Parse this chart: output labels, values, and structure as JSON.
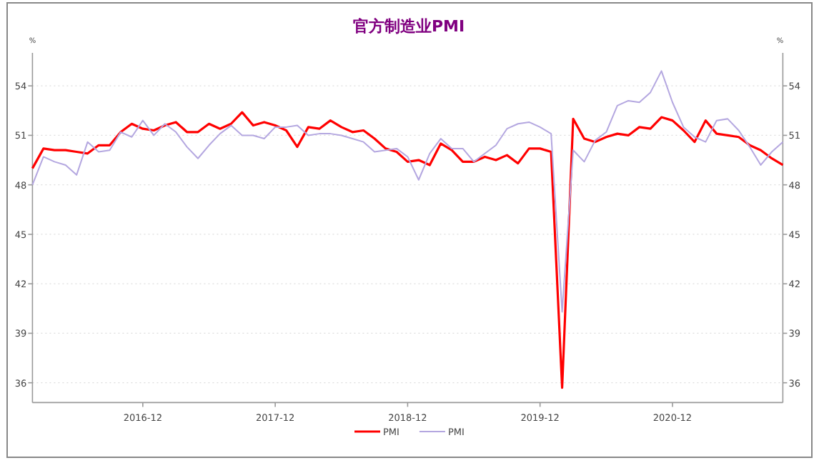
{
  "chart_data": {
    "type": "line",
    "title": "官方制造业PMI",
    "ylabel": "%",
    "y2label": "%",
    "x": [
      "2016-02",
      "2016-03",
      "2016-04",
      "2016-05",
      "2016-06",
      "2016-07",
      "2016-08",
      "2016-09",
      "2016-10",
      "2016-11",
      "2016-12",
      "2017-01",
      "2017-02",
      "2017-03",
      "2017-04",
      "2017-05",
      "2017-06",
      "2017-07",
      "2017-08",
      "2017-09",
      "2017-10",
      "2017-11",
      "2017-12",
      "2018-01",
      "2018-02",
      "2018-03",
      "2018-04",
      "2018-05",
      "2018-06",
      "2018-07",
      "2018-08",
      "2018-09",
      "2018-10",
      "2018-11",
      "2018-12",
      "2019-01",
      "2019-02",
      "2019-03",
      "2019-04",
      "2019-05",
      "2019-06",
      "2019-07",
      "2019-08",
      "2019-09",
      "2019-10",
      "2019-11",
      "2019-12",
      "2020-01",
      "2020-02",
      "2020-03",
      "2020-04",
      "2020-05",
      "2020-06",
      "2020-07",
      "2020-08",
      "2020-09",
      "2020-10",
      "2020-11",
      "2020-12",
      "2021-01",
      "2021-02",
      "2021-03",
      "2021-04",
      "2021-05",
      "2021-06",
      "2021-07",
      "2021-08",
      "2021-09",
      "2021-10"
    ],
    "series": [
      {
        "name": "PMI",
        "color": "#ff0000",
        "values": [
          49.0,
          50.2,
          50.1,
          50.1,
          50.0,
          49.9,
          50.4,
          50.4,
          51.2,
          51.7,
          51.4,
          51.3,
          51.6,
          51.8,
          51.2,
          51.2,
          51.7,
          51.4,
          51.7,
          52.4,
          51.6,
          51.8,
          51.6,
          51.3,
          50.3,
          51.5,
          51.4,
          51.9,
          51.5,
          51.2,
          51.3,
          50.8,
          50.2,
          50.0,
          49.4,
          49.5,
          49.2,
          50.5,
          50.1,
          49.4,
          49.4,
          49.7,
          49.5,
          49.8,
          49.3,
          50.2,
          50.2,
          50.0,
          35.7,
          52.0,
          50.8,
          50.6,
          50.9,
          51.1,
          51.0,
          51.5,
          51.4,
          52.1,
          51.9,
          51.3,
          50.6,
          51.9,
          51.1,
          51.0,
          50.9,
          50.4,
          50.1,
          49.6,
          49.2
        ]
      },
      {
        "name": "PMI",
        "color": "#b4a7e0",
        "values": [
          48.0,
          49.7,
          49.4,
          49.2,
          48.6,
          50.6,
          50.0,
          50.1,
          51.2,
          50.9,
          51.9,
          51.0,
          51.7,
          51.2,
          50.3,
          49.6,
          50.4,
          51.1,
          51.6,
          51.0,
          51.0,
          50.8,
          51.5,
          51.5,
          51.6,
          51.0,
          51.1,
          51.1,
          51.0,
          50.8,
          50.6,
          50.0,
          50.1,
          50.2,
          49.7,
          48.3,
          49.9,
          50.8,
          50.2,
          50.2,
          49.4,
          49.9,
          50.4,
          51.4,
          51.7,
          51.8,
          51.5,
          51.1,
          40.3,
          50.1,
          49.4,
          50.7,
          51.2,
          52.8,
          53.1,
          53.0,
          53.6,
          54.9,
          53.0,
          51.5,
          50.9,
          50.6,
          51.9,
          52.0,
          51.3,
          50.3,
          49.2,
          50.0,
          50.6
        ]
      }
    ],
    "xlim": [
      "2016-02",
      "2021-10"
    ],
    "xticks": [
      "2016-12",
      "2017-12",
      "2018-12",
      "2019-12",
      "2020-12"
    ],
    "ylim": [
      34.8,
      56
    ],
    "yticks": [
      36,
      39,
      42,
      45,
      48,
      51,
      54
    ],
    "y2lim": [
      34.8,
      56
    ],
    "y2ticks": [
      36,
      39,
      42,
      45,
      48,
      51,
      54
    ],
    "grid": "y",
    "legend": "bottom",
    "line_style": "solid",
    "marker": "none"
  }
}
